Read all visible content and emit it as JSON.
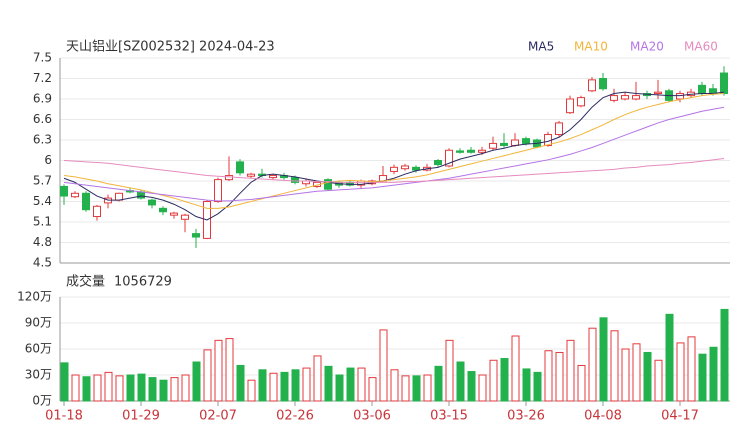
{
  "chart_data": [
    {
      "type": "candlestick",
      "title": "天山铝业[SZ002532] 2024-04-23",
      "categories": [
        "01-18",
        null,
        null,
        null,
        null,
        null,
        null,
        "01-29",
        null,
        null,
        null,
        null,
        null,
        null,
        "02-07",
        null,
        null,
        null,
        null,
        null,
        null,
        "02-26",
        null,
        null,
        null,
        null,
        null,
        null,
        "03-06",
        null,
        null,
        null,
        null,
        null,
        null,
        "03-15",
        null,
        null,
        null,
        null,
        null,
        null,
        "03-26",
        null,
        null,
        null,
        null,
        null,
        null,
        "04-08",
        null,
        null,
        null,
        null,
        null,
        null,
        "04-17",
        null,
        null,
        null,
        null
      ],
      "open": [
        5.62,
        5.47,
        5.52,
        5.18,
        5.38,
        5.42,
        5.56,
        5.54,
        5.42,
        5.3,
        5.2,
        5.14,
        4.93,
        4.86,
        5.4,
        5.72,
        5.98,
        5.77,
        5.8,
        5.75,
        5.78,
        5.75,
        5.66,
        5.62,
        5.72,
        5.68,
        5.68,
        5.64,
        5.66,
        5.7,
        5.84,
        5.88,
        5.9,
        5.86,
        6.0,
        5.92,
        6.14,
        6.15,
        6.12,
        6.18,
        6.25,
        6.22,
        6.32,
        6.3,
        6.22,
        6.38,
        6.7,
        6.8,
        7.02,
        7.2,
        6.88,
        6.9,
        6.9,
        6.98,
        6.98,
        7.02,
        6.9,
        6.95,
        7.1,
        7.05,
        7.28
      ],
      "high": [
        5.65,
        5.55,
        5.55,
        5.35,
        5.5,
        5.53,
        5.6,
        5.57,
        5.44,
        5.33,
        5.25,
        5.22,
        5.0,
        5.42,
        5.75,
        6.06,
        6.02,
        5.82,
        5.88,
        5.8,
        5.82,
        5.78,
        5.74,
        5.7,
        5.74,
        5.7,
        5.7,
        5.72,
        5.72,
        5.92,
        5.94,
        5.95,
        5.93,
        5.95,
        6.02,
        6.18,
        6.18,
        6.2,
        6.2,
        6.35,
        6.4,
        6.4,
        6.35,
        6.32,
        6.42,
        6.58,
        6.95,
        6.95,
        7.22,
        7.28,
        7.05,
        7.0,
        7.15,
        7.02,
        7.18,
        7.05,
        7.02,
        7.05,
        7.15,
        7.12,
        7.38
      ],
      "low": [
        5.35,
        5.45,
        5.25,
        5.12,
        5.3,
        5.4,
        5.52,
        5.43,
        5.3,
        5.2,
        5.15,
        4.95,
        4.72,
        4.85,
        5.38,
        5.7,
        5.78,
        5.74,
        5.75,
        5.72,
        5.72,
        5.65,
        5.62,
        5.6,
        5.56,
        5.6,
        5.62,
        5.6,
        5.64,
        5.68,
        5.8,
        5.85,
        5.82,
        5.84,
        5.9,
        5.9,
        6.1,
        6.1,
        6.08,
        6.15,
        6.18,
        6.2,
        6.22,
        6.18,
        6.2,
        6.35,
        6.68,
        6.78,
        7.0,
        7.02,
        6.85,
        6.88,
        6.88,
        6.9,
        6.9,
        6.85,
        6.85,
        6.92,
        6.95,
        6.95,
        6.95
      ],
      "close": [
        5.48,
        5.52,
        5.28,
        5.33,
        5.45,
        5.52,
        5.54,
        5.45,
        5.35,
        5.25,
        5.23,
        5.2,
        4.88,
        5.4,
        5.72,
        5.78,
        5.82,
        5.8,
        5.78,
        5.78,
        5.75,
        5.68,
        5.7,
        5.68,
        5.58,
        5.64,
        5.64,
        5.7,
        5.7,
        5.78,
        5.9,
        5.92,
        5.86,
        5.9,
        5.94,
        6.15,
        6.12,
        6.12,
        6.15,
        6.25,
        6.22,
        6.3,
        6.25,
        6.2,
        6.38,
        6.55,
        6.9,
        6.92,
        7.18,
        7.05,
        6.95,
        6.95,
        6.95,
        6.95,
        7.0,
        6.88,
        6.98,
        7.0,
        6.98,
        6.98,
        6.98
      ],
      "up_color": "#e4393c",
      "down_color": "#23b14d",
      "series": [
        {
          "name": "MA5",
          "color": "#2b2b63",
          "values": [
            5.74,
            5.68,
            5.58,
            5.48,
            5.42,
            5.42,
            5.45,
            5.48,
            5.46,
            5.42,
            5.36,
            5.28,
            5.18,
            5.13,
            5.22,
            5.35,
            5.52,
            5.68,
            5.78,
            5.8,
            5.78,
            5.76,
            5.73,
            5.7,
            5.68,
            5.66,
            5.65,
            5.65,
            5.67,
            5.7,
            5.74,
            5.8,
            5.85,
            5.88,
            5.9,
            5.96,
            6.02,
            6.06,
            6.1,
            6.15,
            6.18,
            6.22,
            6.24,
            6.25,
            6.28,
            6.34,
            6.45,
            6.6,
            6.78,
            6.92,
            6.98,
            7.0,
            6.98,
            6.97,
            6.96,
            6.95,
            6.95,
            6.97,
            6.98,
            6.98,
            7.0
          ]
        },
        {
          "name": "MA10",
          "color": "#f2b53a",
          "values": [
            5.78,
            5.76,
            5.73,
            5.7,
            5.66,
            5.63,
            5.6,
            5.57,
            5.53,
            5.49,
            5.45,
            5.4,
            5.35,
            5.3,
            5.3,
            5.32,
            5.36,
            5.4,
            5.44,
            5.48,
            5.52,
            5.56,
            5.6,
            5.64,
            5.68,
            5.7,
            5.71,
            5.7,
            5.69,
            5.7,
            5.72,
            5.74,
            5.76,
            5.79,
            5.83,
            5.87,
            5.91,
            5.95,
            5.99,
            6.03,
            6.07,
            6.11,
            6.15,
            6.19,
            6.23,
            6.27,
            6.32,
            6.38,
            6.45,
            6.52,
            6.6,
            6.67,
            6.73,
            6.78,
            6.82,
            6.86,
            6.89,
            6.92,
            6.95,
            6.97,
            6.98
          ]
        },
        {
          "name": "MA20",
          "color": "#b574e6",
          "values": [
            5.68,
            5.66,
            5.64,
            5.62,
            5.6,
            5.58,
            5.56,
            5.54,
            5.52,
            5.5,
            5.48,
            5.46,
            5.44,
            5.42,
            5.41,
            5.41,
            5.42,
            5.43,
            5.45,
            5.47,
            5.49,
            5.51,
            5.53,
            5.55,
            5.56,
            5.57,
            5.58,
            5.59,
            5.6,
            5.62,
            5.64,
            5.66,
            5.68,
            5.7,
            5.72,
            5.74,
            5.77,
            5.8,
            5.83,
            5.86,
            5.89,
            5.92,
            5.95,
            5.98,
            6.01,
            6.05,
            6.09,
            6.14,
            6.19,
            6.25,
            6.31,
            6.37,
            6.43,
            6.49,
            6.55,
            6.6,
            6.64,
            6.68,
            6.72,
            6.75,
            6.78
          ]
        },
        {
          "name": "MA60",
          "color": "#e68bbf",
          "values": [
            6.0,
            5.99,
            5.98,
            5.97,
            5.96,
            5.94,
            5.92,
            5.9,
            5.88,
            5.86,
            5.84,
            5.82,
            5.8,
            5.78,
            5.77,
            5.76,
            5.75,
            5.74,
            5.73,
            5.72,
            5.71,
            5.7,
            5.7,
            5.69,
            5.69,
            5.68,
            5.68,
            5.68,
            5.68,
            5.68,
            5.68,
            5.69,
            5.69,
            5.7,
            5.71,
            5.72,
            5.73,
            5.74,
            5.75,
            5.76,
            5.77,
            5.78,
            5.79,
            5.8,
            5.81,
            5.82,
            5.83,
            5.84,
            5.85,
            5.86,
            5.87,
            5.89,
            5.9,
            5.92,
            5.93,
            5.94,
            5.96,
            5.97,
            5.99,
            6.01,
            6.03
          ]
        }
      ],
      "ylim": [
        4.5,
        7.5
      ],
      "yticks": [
        7.5,
        7.2,
        6.9,
        6.6,
        6.3,
        6,
        5.7,
        5.4,
        5.1,
        4.8,
        4.5
      ],
      "grid": true
    },
    {
      "type": "bar",
      "title": "成交量",
      "latest": 1056729,
      "values": [
        44,
        30,
        28,
        30,
        33,
        29,
        30,
        31,
        27,
        24,
        27,
        30,
        45,
        59,
        70,
        72,
        41,
        24,
        36,
        32,
        33,
        36,
        38,
        52,
        40,
        30,
        38,
        38,
        27,
        82,
        36,
        29,
        29,
        30,
        40,
        70,
        45,
        34,
        30,
        47,
        49,
        75,
        37,
        33,
        58,
        56,
        70,
        41,
        84,
        96,
        81,
        60,
        66,
        56,
        47,
        100,
        67,
        74,
        54,
        62,
        105.6729
      ],
      "ylim": [
        0,
        120
      ],
      "yticks": [
        {
          "value": 120,
          "label": "120万"
        },
        {
          "value": 90,
          "label": "90万"
        },
        {
          "value": 60,
          "label": "60万"
        },
        {
          "value": 30,
          "label": "30万"
        },
        {
          "value": 0,
          "label": "0万"
        }
      ],
      "grid": true
    }
  ]
}
